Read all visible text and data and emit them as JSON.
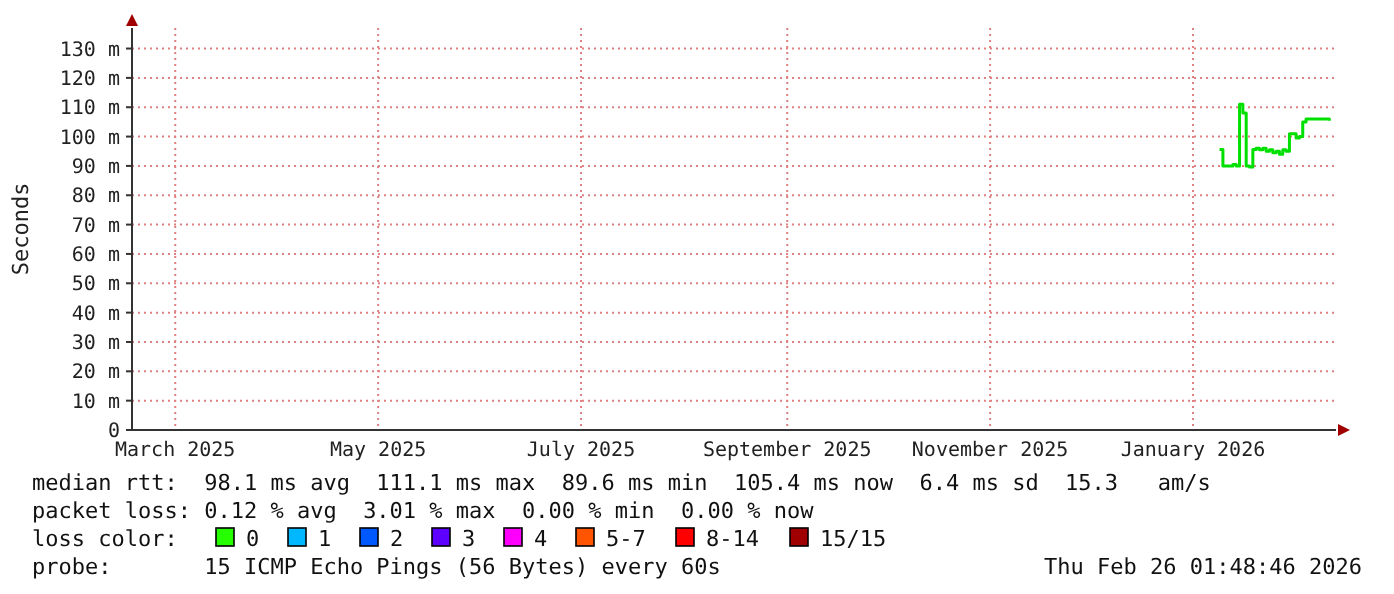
{
  "chart_data": {
    "type": "line",
    "ylabel": "Seconds",
    "xlim": [
      "2025-02-16",
      "2026-02-13"
    ],
    "xticks": [
      {
        "value": "2025-03-01",
        "label": "March 2025"
      },
      {
        "value": "2025-05-01",
        "label": "May 2025"
      },
      {
        "value": "2025-07-01",
        "label": "July 2025"
      },
      {
        "value": "2025-09-01",
        "label": "September 2025"
      },
      {
        "value": "2025-11-01",
        "label": "November 2025"
      },
      {
        "value": "2026-01-01",
        "label": "January 2026"
      }
    ],
    "ylim": [
      0,
      137
    ],
    "yticks": [
      {
        "value": 0,
        "label": "0"
      },
      {
        "value": 10,
        "label": "10 m"
      },
      {
        "value": 20,
        "label": "20 m"
      },
      {
        "value": 30,
        "label": "30 m"
      },
      {
        "value": 40,
        "label": "40 m"
      },
      {
        "value": 50,
        "label": "50 m"
      },
      {
        "value": 60,
        "label": "60 m"
      },
      {
        "value": 70,
        "label": "70 m"
      },
      {
        "value": 80,
        "label": "80 m"
      },
      {
        "value": 90,
        "label": "90 m"
      },
      {
        "value": 100,
        "label": "100 m"
      },
      {
        "value": 110,
        "label": "110 m"
      },
      {
        "value": 120,
        "label": "120 m"
      },
      {
        "value": 130,
        "label": "130 m"
      }
    ],
    "grid": true,
    "legend": "bottom",
    "legend_title": "loss color:",
    "line_style": "solid",
    "series": [
      {
        "color": "#00e000",
        "x": [
          "2026-01-09",
          "2026-01-10",
          "2026-01-11",
          "2026-01-12",
          "2026-01-13",
          "2026-01-14",
          "2026-01-15",
          "2026-01-16",
          "2026-01-17",
          "2026-01-18",
          "2026-01-19",
          "2026-01-20",
          "2026-01-21",
          "2026-01-22",
          "2026-01-23",
          "2026-01-24",
          "2026-01-25",
          "2026-01-26",
          "2026-01-27",
          "2026-01-28",
          "2026-01-29",
          "2026-01-30",
          "2026-01-31",
          "2026-02-01",
          "2026-02-02",
          "2026-02-03",
          "2026-02-04",
          "2026-02-05",
          "2026-02-06",
          "2026-02-07",
          "2026-02-08",
          "2026-02-09",
          "2026-02-10",
          "2026-02-11"
        ],
        "values": [
          95.6,
          90,
          90,
          90,
          90.5,
          90,
          111,
          108,
          90,
          89.6,
          95.6,
          96,
          95.5,
          96,
          95,
          95.5,
          94.5,
          95,
          94,
          95.5,
          95,
          101,
          101,
          99.5,
          100,
          105,
          106,
          106,
          106,
          106,
          106,
          106,
          106,
          105.4
        ]
      },
      {
        "name": "0",
        "color": "#26ff00"
      },
      {
        "name": "1",
        "color": "#00b8ff"
      },
      {
        "name": "2",
        "color": "#0059ff"
      },
      {
        "name": "3",
        "color": "#5e00ff"
      },
      {
        "name": "4",
        "color": "#ff00ff"
      },
      {
        "name": "5-7",
        "color": "#ff5500"
      },
      {
        "name": "8-14",
        "color": "#ff0000"
      },
      {
        "name": "15/15",
        "color": "#a10000"
      }
    ],
    "annotations": [
      "median rtt:  98.1 ms avg  111.1 ms max  89.6 ms min  105.4 ms now  6.4 ms sd  15.3   am/s",
      "packet loss: 0.12 % avg  3.01 % max  0.00 % min  0.00 % now",
      "probe:       15 ICMP Echo Pings (56 Bytes) every 60s",
      "Thu Feb 26 01:48:46 2026"
    ]
  }
}
